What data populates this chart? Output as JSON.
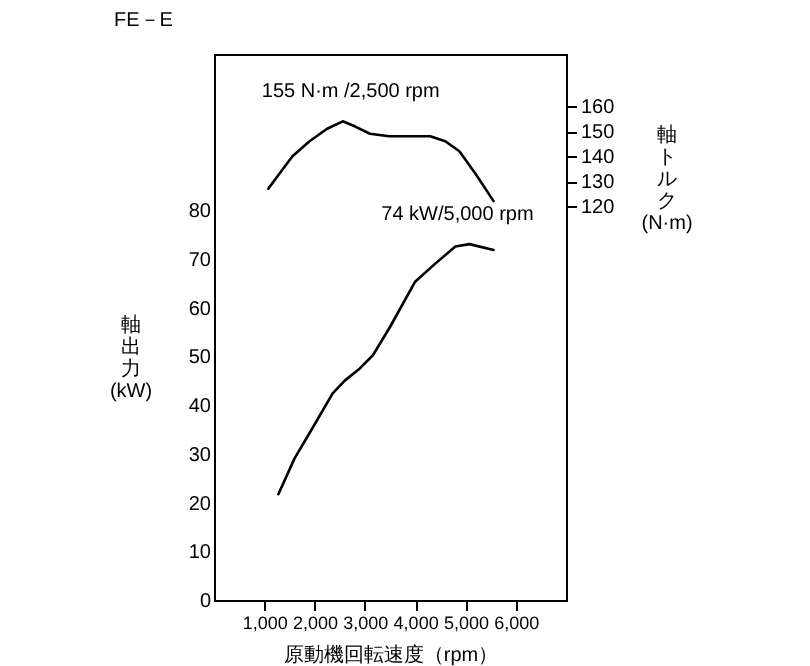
{
  "chart_data": {
    "type": "line",
    "title": "FE－E",
    "xlabel": "原動機回転速度（rpm）",
    "ylabel": "軸出力 (kW)",
    "y2label": "軸トルク (N·m)",
    "xlim": [
      0,
      7000
    ],
    "xticks": [
      {
        "value": 1000,
        "label": "1,000"
      },
      {
        "value": 2000,
        "label": "2,000"
      },
      {
        "value": 3000,
        "label": "3,000"
      },
      {
        "value": 4000,
        "label": "4,000"
      },
      {
        "value": 5000,
        "label": "5,000"
      },
      {
        "value": 6000,
        "label": "6,000"
      }
    ],
    "ylim": [
      0,
      112
    ],
    "yticks": [
      0,
      10,
      20,
      30,
      40,
      50,
      60,
      70,
      80
    ],
    "y2lim": [
      -38,
      181
    ],
    "y2ticks": [
      120,
      130,
      140,
      150,
      160
    ],
    "grid": false,
    "marker": "none",
    "line_style": "solid",
    "series": [
      {
        "color": "#000000",
        "axis": "y2",
        "x": [
          1080,
          1300,
          1560,
          1900,
          2250,
          2560,
          2800,
          3100,
          3480,
          3900,
          4300,
          4600,
          4880,
          5200,
          5560
        ],
        "values": [
          127,
          133,
          140,
          146,
          151,
          154,
          152,
          149,
          148,
          148,
          148,
          146,
          142,
          133,
          122
        ]
      },
      {
        "color": "#000000",
        "axis": "y",
        "x": [
          1280,
          1600,
          2000,
          2360,
          2600,
          2900,
          3160,
          3500,
          4000,
          4400,
          4800,
          5080,
          5560
        ],
        "values": [
          21.7,
          29,
          36,
          42.4,
          45,
          47.5,
          50.2,
          56,
          65.3,
          69,
          72.5,
          73,
          71.8
        ]
      }
    ],
    "annotations": [
      "155 N·m /2,500 rpm",
      "74 kW/5,000 rpm"
    ]
  }
}
